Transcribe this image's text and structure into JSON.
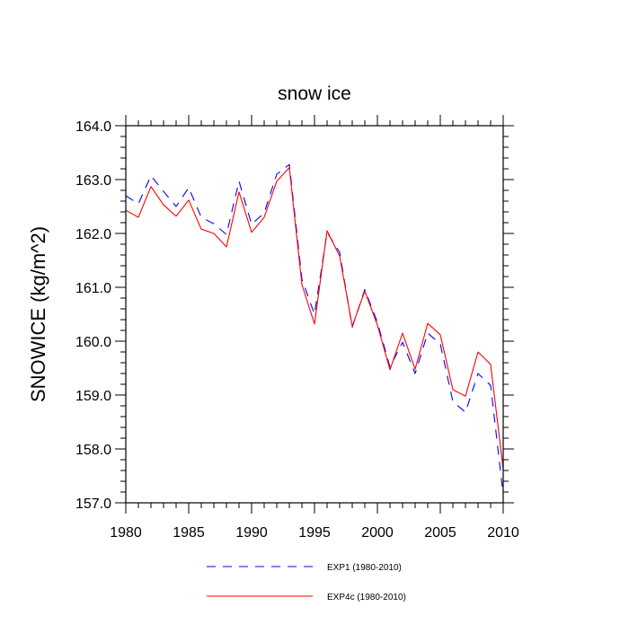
{
  "chart_data": {
    "type": "line",
    "title": "snow ice",
    "xlabel": "",
    "ylabel": "SNOWICE  (kg/m^2)",
    "xlim": [
      1980,
      2010
    ],
    "ylim": [
      157.0,
      164.0
    ],
    "x_ticks": [
      1980,
      1985,
      1990,
      1995,
      2000,
      2005,
      2010
    ],
    "x_tick_labels": [
      "1980",
      "1985",
      "1990",
      "1995",
      "2000",
      "2005",
      "2010"
    ],
    "y_ticks": [
      157.0,
      158.0,
      159.0,
      160.0,
      161.0,
      162.0,
      163.0,
      164.0
    ],
    "y_tick_labels": [
      "157.0",
      "158.0",
      "159.0",
      "160.0",
      "161.0",
      "162.0",
      "163.0",
      "164.0"
    ],
    "grid": false,
    "legend_position": "bottom",
    "x": [
      1980,
      1981,
      1982,
      1983,
      1984,
      1985,
      1986,
      1987,
      1988,
      1989,
      1990,
      1991,
      1992,
      1993,
      1994,
      1995,
      1996,
      1997,
      1998,
      1999,
      2000,
      2001,
      2002,
      2003,
      2004,
      2005,
      2006,
      2007,
      2008,
      2009,
      2010
    ],
    "series": [
      {
        "name": "EXP1 (1980-2010)",
        "color": "#0000ff",
        "style": "dashed",
        "values": [
          162.7,
          162.55,
          163.07,
          162.78,
          162.5,
          162.85,
          162.3,
          162.18,
          161.98,
          162.97,
          162.17,
          162.38,
          163.1,
          163.28,
          161.15,
          160.5,
          162.02,
          161.65,
          160.26,
          160.96,
          160.35,
          159.52,
          159.98,
          159.4,
          160.15,
          159.95,
          158.88,
          158.68,
          159.4,
          159.18,
          157.15
        ]
      },
      {
        "name": "EXP4c (1980-2010)",
        "color": "#ff0000",
        "style": "solid",
        "values": [
          162.43,
          162.3,
          162.87,
          162.53,
          162.32,
          162.62,
          162.08,
          162.0,
          161.75,
          162.77,
          162.02,
          162.3,
          162.97,
          163.22,
          161.05,
          160.32,
          162.05,
          161.58,
          160.28,
          160.93,
          160.3,
          159.47,
          160.15,
          159.48,
          160.33,
          160.12,
          159.1,
          158.98,
          159.8,
          159.57,
          157.62
        ]
      }
    ]
  }
}
